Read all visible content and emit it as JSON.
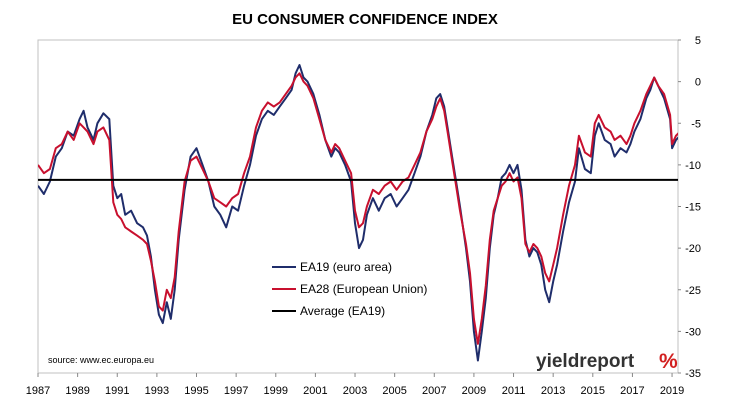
{
  "chart_data": {
    "type": "line",
    "title": "EU CONSUMER CONFIDENCE INDEX",
    "xlabel": "",
    "ylabel": "",
    "xlim": [
      1987,
      2019.3
    ],
    "ylim": [
      -35,
      5
    ],
    "x_ticks": [
      "1987",
      "1989",
      "1991",
      "1993",
      "1995",
      "1997",
      "1999",
      "2001",
      "2003",
      "2005",
      "2007",
      "2009",
      "2011",
      "2013",
      "2015",
      "2017",
      "2019"
    ],
    "y_ticks": [
      "5",
      "0",
      "-5",
      "-10",
      "-15",
      "-20",
      "-25",
      "-30",
      "-35"
    ],
    "y_axis_side": "right",
    "grid": false,
    "legend_position": "center-lower",
    "source": "source: www.ec.europa.eu",
    "logo_text": "yieldreport",
    "logo_symbol": "%",
    "series": [
      {
        "name": "EA19 (euro area)",
        "color": "#1f2d6b",
        "points": [
          [
            1987.0,
            -12.5
          ],
          [
            1987.3,
            -13.5
          ],
          [
            1987.6,
            -12.0
          ],
          [
            1987.9,
            -9.0
          ],
          [
            1988.2,
            -8.0
          ],
          [
            1988.5,
            -6.0
          ],
          [
            1988.8,
            -6.5
          ],
          [
            1989.1,
            -4.5
          ],
          [
            1989.3,
            -3.5
          ],
          [
            1989.5,
            -5.5
          ],
          [
            1989.8,
            -7.0
          ],
          [
            1990.0,
            -5.0
          ],
          [
            1990.3,
            -3.8
          ],
          [
            1990.6,
            -4.5
          ],
          [
            1990.8,
            -12.5
          ],
          [
            1991.0,
            -14.0
          ],
          [
            1991.2,
            -13.5
          ],
          [
            1991.4,
            -16.0
          ],
          [
            1991.7,
            -15.5
          ],
          [
            1992.0,
            -17.0
          ],
          [
            1992.3,
            -17.5
          ],
          [
            1992.5,
            -18.5
          ],
          [
            1992.7,
            -21.0
          ],
          [
            1992.9,
            -25.0
          ],
          [
            1993.1,
            -28.0
          ],
          [
            1993.3,
            -29.0
          ],
          [
            1993.5,
            -26.5
          ],
          [
            1993.7,
            -28.5
          ],
          [
            1993.9,
            -25.0
          ],
          [
            1994.1,
            -19.0
          ],
          [
            1994.4,
            -13.0
          ],
          [
            1994.7,
            -9.0
          ],
          [
            1995.0,
            -8.0
          ],
          [
            1995.3,
            -10.0
          ],
          [
            1995.6,
            -12.0
          ],
          [
            1995.9,
            -15.0
          ],
          [
            1996.2,
            -16.0
          ],
          [
            1996.5,
            -17.5
          ],
          [
            1996.8,
            -15.0
          ],
          [
            1997.1,
            -15.5
          ],
          [
            1997.4,
            -12.5
          ],
          [
            1997.7,
            -10.0
          ],
          [
            1998.0,
            -6.5
          ],
          [
            1998.3,
            -4.5
          ],
          [
            1998.6,
            -3.5
          ],
          [
            1998.9,
            -4.0
          ],
          [
            1999.2,
            -3.0
          ],
          [
            1999.5,
            -2.0
          ],
          [
            1999.8,
            -1.0
          ],
          [
            2000.0,
            1.0
          ],
          [
            2000.2,
            2.0
          ],
          [
            2000.4,
            0.5
          ],
          [
            2000.6,
            0.0
          ],
          [
            2000.9,
            -1.5
          ],
          [
            2001.2,
            -4.0
          ],
          [
            2001.5,
            -7.0
          ],
          [
            2001.8,
            -9.0
          ],
          [
            2002.0,
            -8.0
          ],
          [
            2002.2,
            -8.5
          ],
          [
            2002.5,
            -10.0
          ],
          [
            2002.8,
            -12.0
          ],
          [
            2003.0,
            -17.0
          ],
          [
            2003.2,
            -20.0
          ],
          [
            2003.4,
            -19.0
          ],
          [
            2003.6,
            -16.0
          ],
          [
            2003.9,
            -14.0
          ],
          [
            2004.2,
            -15.5
          ],
          [
            2004.5,
            -14.0
          ],
          [
            2004.8,
            -13.5
          ],
          [
            2005.1,
            -15.0
          ],
          [
            2005.4,
            -14.0
          ],
          [
            2005.7,
            -13.0
          ],
          [
            2006.0,
            -11.0
          ],
          [
            2006.3,
            -9.0
          ],
          [
            2006.6,
            -6.0
          ],
          [
            2006.9,
            -4.0
          ],
          [
            2007.1,
            -2.0
          ],
          [
            2007.3,
            -1.5
          ],
          [
            2007.5,
            -3.0
          ],
          [
            2007.7,
            -6.0
          ],
          [
            2007.9,
            -9.0
          ],
          [
            2008.1,
            -12.0
          ],
          [
            2008.3,
            -15.0
          ],
          [
            2008.6,
            -20.0
          ],
          [
            2008.8,
            -24.0
          ],
          [
            2009.0,
            -30.0
          ],
          [
            2009.2,
            -33.5
          ],
          [
            2009.4,
            -30.0
          ],
          [
            2009.6,
            -26.0
          ],
          [
            2009.8,
            -20.0
          ],
          [
            2010.0,
            -16.0
          ],
          [
            2010.2,
            -14.0
          ],
          [
            2010.4,
            -11.5
          ],
          [
            2010.6,
            -11.0
          ],
          [
            2010.8,
            -10.0
          ],
          [
            2011.0,
            -11.0
          ],
          [
            2011.2,
            -10.0
          ],
          [
            2011.4,
            -13.0
          ],
          [
            2011.6,
            -19.0
          ],
          [
            2011.8,
            -21.0
          ],
          [
            2012.0,
            -20.0
          ],
          [
            2012.2,
            -20.5
          ],
          [
            2012.4,
            -22.0
          ],
          [
            2012.6,
            -25.0
          ],
          [
            2012.8,
            -26.5
          ],
          [
            2013.0,
            -24.0
          ],
          [
            2013.2,
            -22.0
          ],
          [
            2013.5,
            -18.0
          ],
          [
            2013.8,
            -14.5
          ],
          [
            2014.1,
            -12.0
          ],
          [
            2014.3,
            -8.0
          ],
          [
            2014.6,
            -10.5
          ],
          [
            2014.9,
            -11.0
          ],
          [
            2015.1,
            -6.5
          ],
          [
            2015.3,
            -5.0
          ],
          [
            2015.6,
            -7.0
          ],
          [
            2015.9,
            -7.5
          ],
          [
            2016.1,
            -9.0
          ],
          [
            2016.4,
            -8.0
          ],
          [
            2016.7,
            -8.5
          ],
          [
            2016.9,
            -7.5
          ],
          [
            2017.1,
            -6.0
          ],
          [
            2017.4,
            -4.5
          ],
          [
            2017.7,
            -2.0
          ],
          [
            2017.9,
            -1.0
          ],
          [
            2018.1,
            0.5
          ],
          [
            2018.3,
            -0.5
          ],
          [
            2018.6,
            -2.0
          ],
          [
            2018.9,
            -4.5
          ],
          [
            2019.0,
            -8.0
          ],
          [
            2019.2,
            -7.0
          ],
          [
            2019.4,
            -6.5
          ],
          [
            2019.6,
            -7.5
          ],
          [
            2019.8,
            -7.0
          ],
          [
            2020.0,
            -6.5
          ]
        ]
      },
      {
        "name": "EA28 (European Union)",
        "color": "#c8102e",
        "points": [
          [
            1987.0,
            -10.0
          ],
          [
            1987.3,
            -11.0
          ],
          [
            1987.6,
            -10.5
          ],
          [
            1987.9,
            -8.0
          ],
          [
            1988.2,
            -7.5
          ],
          [
            1988.5,
            -6.0
          ],
          [
            1988.8,
            -7.0
          ],
          [
            1989.1,
            -5.0
          ],
          [
            1989.3,
            -5.5
          ],
          [
            1989.5,
            -6.0
          ],
          [
            1989.8,
            -7.5
          ],
          [
            1990.0,
            -6.0
          ],
          [
            1990.3,
            -5.5
          ],
          [
            1990.6,
            -7.0
          ],
          [
            1990.8,
            -14.5
          ],
          [
            1991.0,
            -16.0
          ],
          [
            1991.2,
            -16.5
          ],
          [
            1991.4,
            -17.5
          ],
          [
            1991.7,
            -18.0
          ],
          [
            1992.0,
            -18.5
          ],
          [
            1992.3,
            -19.0
          ],
          [
            1992.5,
            -19.5
          ],
          [
            1992.7,
            -21.5
          ],
          [
            1992.9,
            -24.0
          ],
          [
            1993.1,
            -27.0
          ],
          [
            1993.3,
            -27.5
          ],
          [
            1993.5,
            -25.0
          ],
          [
            1993.7,
            -26.0
          ],
          [
            1993.9,
            -23.5
          ],
          [
            1994.1,
            -18.0
          ],
          [
            1994.4,
            -12.0
          ],
          [
            1994.7,
            -9.5
          ],
          [
            1995.0,
            -9.0
          ],
          [
            1995.3,
            -10.5
          ],
          [
            1995.6,
            -12.0
          ],
          [
            1995.9,
            -14.0
          ],
          [
            1996.2,
            -14.5
          ],
          [
            1996.5,
            -15.0
          ],
          [
            1996.8,
            -14.0
          ],
          [
            1997.1,
            -13.5
          ],
          [
            1997.4,
            -11.0
          ],
          [
            1997.7,
            -9.0
          ],
          [
            1998.0,
            -5.5
          ],
          [
            1998.3,
            -3.5
          ],
          [
            1998.6,
            -2.5
          ],
          [
            1998.9,
            -3.0
          ],
          [
            1999.2,
            -2.5
          ],
          [
            1999.5,
            -1.5
          ],
          [
            1999.8,
            -0.5
          ],
          [
            2000.0,
            0.5
          ],
          [
            2000.2,
            1.0
          ],
          [
            2000.4,
            0.0
          ],
          [
            2000.6,
            -0.5
          ],
          [
            2000.9,
            -2.0
          ],
          [
            2001.2,
            -4.5
          ],
          [
            2001.5,
            -7.0
          ],
          [
            2001.8,
            -8.5
          ],
          [
            2002.0,
            -7.5
          ],
          [
            2002.2,
            -8.0
          ],
          [
            2002.5,
            -9.5
          ],
          [
            2002.8,
            -11.0
          ],
          [
            2003.0,
            -15.5
          ],
          [
            2003.2,
            -17.5
          ],
          [
            2003.4,
            -17.0
          ],
          [
            2003.6,
            -15.0
          ],
          [
            2003.9,
            -13.0
          ],
          [
            2004.2,
            -13.5
          ],
          [
            2004.5,
            -12.5
          ],
          [
            2004.8,
            -12.0
          ],
          [
            2005.1,
            -13.0
          ],
          [
            2005.4,
            -12.0
          ],
          [
            2005.7,
            -11.5
          ],
          [
            2006.0,
            -10.0
          ],
          [
            2006.3,
            -8.5
          ],
          [
            2006.6,
            -6.0
          ],
          [
            2006.9,
            -4.5
          ],
          [
            2007.1,
            -3.0
          ],
          [
            2007.3,
            -2.0
          ],
          [
            2007.5,
            -3.5
          ],
          [
            2007.7,
            -6.5
          ],
          [
            2007.9,
            -9.5
          ],
          [
            2008.1,
            -12.5
          ],
          [
            2008.3,
            -15.5
          ],
          [
            2008.6,
            -19.5
          ],
          [
            2008.8,
            -23.0
          ],
          [
            2009.0,
            -28.5
          ],
          [
            2009.2,
            -31.5
          ],
          [
            2009.4,
            -28.5
          ],
          [
            2009.6,
            -24.5
          ],
          [
            2009.8,
            -19.0
          ],
          [
            2010.0,
            -15.5
          ],
          [
            2010.2,
            -14.0
          ],
          [
            2010.4,
            -12.5
          ],
          [
            2010.6,
            -12.0
          ],
          [
            2010.8,
            -11.0
          ],
          [
            2011.0,
            -12.0
          ],
          [
            2011.2,
            -11.5
          ],
          [
            2011.4,
            -14.0
          ],
          [
            2011.6,
            -19.5
          ],
          [
            2011.8,
            -20.5
          ],
          [
            2012.0,
            -19.5
          ],
          [
            2012.2,
            -20.0
          ],
          [
            2012.4,
            -21.0
          ],
          [
            2012.6,
            -23.0
          ],
          [
            2012.8,
            -24.0
          ],
          [
            2013.0,
            -22.0
          ],
          [
            2013.2,
            -20.0
          ],
          [
            2013.5,
            -16.0
          ],
          [
            2013.8,
            -12.5
          ],
          [
            2014.1,
            -10.0
          ],
          [
            2014.3,
            -6.5
          ],
          [
            2014.6,
            -8.5
          ],
          [
            2014.9,
            -9.0
          ],
          [
            2015.1,
            -5.0
          ],
          [
            2015.3,
            -4.0
          ],
          [
            2015.6,
            -5.5
          ],
          [
            2015.9,
            -6.0
          ],
          [
            2016.1,
            -7.0
          ],
          [
            2016.4,
            -6.5
          ],
          [
            2016.7,
            -7.5
          ],
          [
            2016.9,
            -6.5
          ],
          [
            2017.1,
            -5.0
          ],
          [
            2017.4,
            -3.5
          ],
          [
            2017.7,
            -1.5
          ],
          [
            2017.9,
            -0.5
          ],
          [
            2018.1,
            0.5
          ],
          [
            2018.3,
            -0.5
          ],
          [
            2018.6,
            -1.5
          ],
          [
            2018.9,
            -4.0
          ],
          [
            2019.0,
            -7.5
          ],
          [
            2019.2,
            -6.5
          ],
          [
            2019.4,
            -6.0
          ],
          [
            2019.6,
            -7.0
          ],
          [
            2019.8,
            -6.5
          ],
          [
            2020.0,
            -6.0
          ]
        ]
      },
      {
        "name": "Average (EA19)",
        "color": "#000000",
        "value": -11.8
      }
    ]
  }
}
